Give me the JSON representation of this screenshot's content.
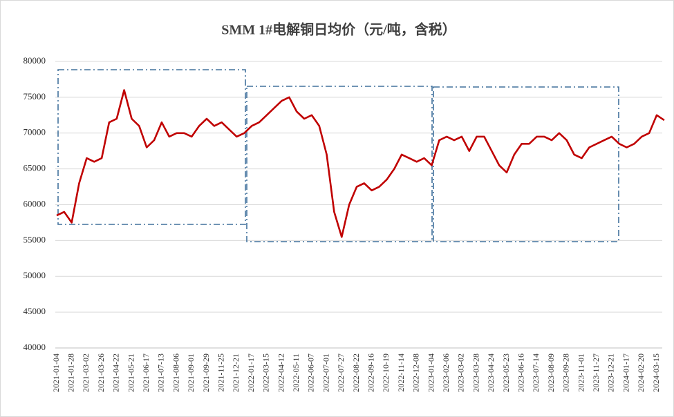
{
  "chart_data": {
    "type": "line",
    "title": "SMM 1#电解铜日均价（元/吨，含税）",
    "categories": [
      "2021-01-04",
      null,
      "2021-01-28",
      null,
      "2021-03-02",
      null,
      "2021-03-26",
      null,
      "2021-04-22",
      null,
      "2021-05-21",
      null,
      "2021-06-17",
      null,
      "2021-07-13",
      null,
      "2021-08-06",
      null,
      "2021-09-01",
      null,
      "2021-09-29",
      null,
      "2021-11-25",
      null,
      "2021-12-21",
      null,
      "2022-01-17",
      null,
      "2022-03-15",
      null,
      "2022-04-12",
      null,
      "2022-05-11",
      null,
      "2022-06-07",
      null,
      "2022-07-01",
      null,
      "2022-07-27",
      null,
      "2022-08-22",
      null,
      "2022-09-16",
      null,
      "2022-10-19",
      null,
      "2022-11-14",
      null,
      "2022-12-08",
      null,
      "2023-01-04",
      null,
      "2023-02-06",
      null,
      "2023-03-02",
      null,
      "2023-03-28",
      null,
      "2023-04-24",
      null,
      "2023-05-23",
      null,
      "2023-06-16",
      null,
      "2023-07-14",
      null,
      "2023-08-09",
      null,
      "2023-09-28",
      null,
      "2023-11-01",
      null,
      "2023-11-27",
      null,
      "2023-12-21",
      null,
      "2024-01-17",
      null,
      "2024-02-20",
      null,
      "2024-03-15",
      null
    ],
    "values": [
      58500,
      59000,
      57500,
      63000,
      66500,
      66000,
      66500,
      71500,
      72000,
      76000,
      72000,
      71000,
      68000,
      69000,
      71500,
      69500,
      70000,
      70000,
      69500,
      71000,
      72000,
      71000,
      71500,
      70500,
      69500,
      70000,
      71000,
      71500,
      72500,
      73500,
      74500,
      75000,
      73000,
      72000,
      72500,
      71000,
      67000,
      59000,
      55500,
      60000,
      62500,
      63000,
      62000,
      62500,
      63500,
      65000,
      67000,
      66500,
      66000,
      66500,
      65500,
      69000,
      69500,
      69000,
      69500,
      67500,
      69500,
      69500,
      67500,
      65500,
      64500,
      67000,
      68500,
      68500,
      69500,
      69500,
      69000,
      70000,
      69000,
      67000,
      66500,
      68000,
      68500,
      69000,
      69500,
      68500,
      68000,
      68500,
      69500,
      70000,
      72500,
      71800
    ],
    "color": "#c00000",
    "ylim": [
      40000,
      80000
    ],
    "yticks": [
      40000,
      45000,
      50000,
      55000,
      60000,
      65000,
      70000,
      75000,
      80000
    ],
    "grid": true
  }
}
